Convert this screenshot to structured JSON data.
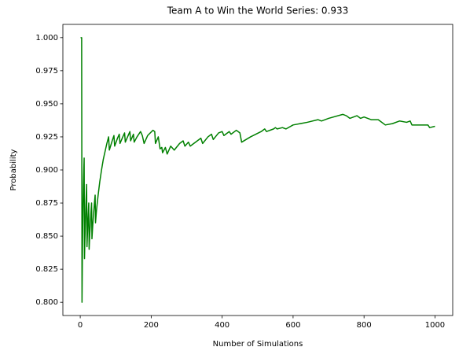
{
  "chart_data": {
    "type": "line",
    "title": "Team A to Win the World Series: 0.933",
    "xlabel": "Number of Simulations",
    "ylabel": "Probability",
    "xlim": [
      -48.95,
      1049.95
    ],
    "ylim": [
      0.79,
      1.01
    ],
    "xticks": [
      0,
      200,
      400,
      600,
      800,
      1000
    ],
    "yticks": [
      {
        "value": 0.8,
        "label": "0.800"
      },
      {
        "value": 0.825,
        "label": "0.825"
      },
      {
        "value": 0.85,
        "label": "0.850"
      },
      {
        "value": 0.875,
        "label": "0.875"
      },
      {
        "value": 0.9,
        "label": "0.900"
      },
      {
        "value": 0.925,
        "label": "0.925"
      },
      {
        "value": 0.95,
        "label": "0.950"
      },
      {
        "value": 0.975,
        "label": "0.975"
      },
      {
        "value": 1.0,
        "label": "1.000"
      }
    ],
    "series": [
      {
        "color": "#008000",
        "x": [
          1,
          4,
          5,
          6,
          7,
          8,
          9,
          10,
          11,
          12,
          13,
          16,
          18,
          19,
          22,
          24,
          25,
          27,
          30,
          32,
          33,
          35,
          37,
          40,
          42,
          43,
          46,
          50,
          55,
          60,
          65,
          70,
          75,
          80,
          82,
          90,
          95,
          97,
          105,
          110,
          112,
          120,
          125,
          127,
          135,
          140,
          142,
          150,
          152,
          160,
          170,
          175,
          180,
          190,
          205,
          210,
          212,
          220,
          225,
          230,
          232,
          240,
          245,
          255,
          265,
          280,
          290,
          295,
          305,
          310,
          330,
          340,
          345,
          360,
          370,
          375,
          390,
          400,
          405,
          420,
          425,
          440,
          450,
          455,
          480,
          510,
          520,
          525,
          545,
          550,
          555,
          570,
          580,
          600,
          640,
          670,
          680,
          700,
          740,
          750,
          760,
          780,
          790,
          800,
          820,
          840,
          860,
          880,
          900,
          920,
          930,
          935,
          960,
          980,
          985,
          1000
        ],
        "values": [
          1.0,
          1.0,
          0.8,
          0.833,
          0.857,
          0.875,
          0.889,
          0.9,
          0.909,
          0.833,
          0.846,
          0.875,
          0.889,
          0.842,
          0.864,
          0.875,
          0.84,
          0.852,
          0.867,
          0.875,
          0.848,
          0.857,
          0.865,
          0.875,
          0.881,
          0.86,
          0.87,
          0.88,
          0.891,
          0.9,
          0.908,
          0.914,
          0.92,
          0.925,
          0.915,
          0.922,
          0.926,
          0.918,
          0.924,
          0.927,
          0.92,
          0.925,
          0.928,
          0.921,
          0.926,
          0.929,
          0.922,
          0.927,
          0.921,
          0.925,
          0.929,
          0.926,
          0.92,
          0.926,
          0.93,
          0.929,
          0.92,
          0.925,
          0.916,
          0.917,
          0.913,
          0.917,
          0.912,
          0.918,
          0.915,
          0.92,
          0.922,
          0.918,
          0.921,
          0.918,
          0.922,
          0.924,
          0.92,
          0.925,
          0.927,
          0.923,
          0.928,
          0.929,
          0.926,
          0.929,
          0.927,
          0.93,
          0.928,
          0.921,
          0.925,
          0.929,
          0.931,
          0.929,
          0.931,
          0.932,
          0.931,
          0.932,
          0.931,
          0.934,
          0.936,
          0.938,
          0.937,
          0.939,
          0.942,
          0.941,
          0.939,
          0.941,
          0.939,
          0.94,
          0.938,
          0.938,
          0.934,
          0.935,
          0.937,
          0.936,
          0.937,
          0.934,
          0.934,
          0.934,
          0.932,
          0.933
        ]
      }
    ]
  }
}
